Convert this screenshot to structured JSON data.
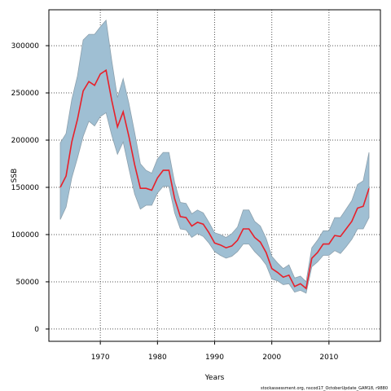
{
  "chart_data": {
    "type": "line",
    "xlabel": "Years",
    "ylabel": "SSB",
    "footer": "stockassessment.org, nscod17_OctoberUpdate_GAM18, r9880",
    "xlim": [
      1961,
      2019
    ],
    "ylim": [
      -13000,
      338000
    ],
    "x_ticks": [
      1970,
      1980,
      1990,
      2000,
      2010
    ],
    "y_ticks": [
      0,
      50000,
      100000,
      150000,
      200000,
      250000,
      300000
    ],
    "grid": true,
    "x": [
      1963,
      1964,
      1965,
      1966,
      1967,
      1968,
      1969,
      1970,
      1971,
      1972,
      1973,
      1974,
      1975,
      1976,
      1977,
      1978,
      1979,
      1980,
      1981,
      1982,
      1983,
      1984,
      1985,
      1986,
      1987,
      1988,
      1989,
      1990,
      1991,
      1992,
      1993,
      1994,
      1995,
      1996,
      1997,
      1998,
      1999,
      2000,
      2001,
      2002,
      2003,
      2004,
      2005,
      2006,
      2007,
      2008,
      2009,
      2010,
      2011,
      2012,
      2013,
      2014,
      2015,
      2016,
      2017
    ],
    "series": [
      {
        "role": "estimate",
        "color": "#e8202a",
        "values": [
          150000,
          162000,
          198000,
          222000,
          252000,
          262000,
          258000,
          270000,
          274000,
          242000,
          214000,
          230000,
          204000,
          174000,
          149000,
          149000,
          147000,
          160000,
          168000,
          168000,
          138000,
          119000,
          118000,
          109000,
          113000,
          111000,
          102000,
          91000,
          89000,
          86000,
          88000,
          94000,
          106000,
          106000,
          97000,
          92000,
          81000,
          64000,
          60000,
          55000,
          57000,
          45000,
          48000,
          43000,
          75000,
          81000,
          90000,
          90000,
          99000,
          98000,
          106000,
          114000,
          128000,
          130000,
          149000
        ]
      },
      {
        "role": "upper-bound",
        "values": [
          197000,
          207000,
          243000,
          268000,
          306000,
          312000,
          312000,
          320000,
          327000,
          284000,
          245000,
          265000,
          239000,
          208000,
          175000,
          168000,
          165000,
          180000,
          187000,
          187000,
          155000,
          134000,
          133000,
          122000,
          126000,
          123000,
          113000,
          102000,
          100000,
          97000,
          101000,
          108000,
          126000,
          126000,
          114000,
          109000,
          96000,
          77000,
          70000,
          64000,
          68000,
          54000,
          56000,
          50000,
          86000,
          94000,
          104000,
          104000,
          118000,
          118000,
          127000,
          136000,
          153000,
          157000,
          187000
        ]
      },
      {
        "role": "lower-bound",
        "values": [
          116000,
          129000,
          160000,
          181000,
          204000,
          220000,
          215000,
          225000,
          229000,
          205000,
          185000,
          198000,
          170000,
          143000,
          127000,
          131000,
          131000,
          144000,
          151000,
          151000,
          123000,
          106000,
          105000,
          97000,
          101000,
          98000,
          91000,
          82000,
          78000,
          75000,
          77000,
          82000,
          90000,
          90000,
          82000,
          76000,
          68000,
          53000,
          51000,
          47000,
          48000,
          39000,
          41000,
          38000,
          66000,
          71000,
          78000,
          78000,
          83000,
          80000,
          87000,
          95000,
          106000,
          106000,
          118000
        ]
      }
    ],
    "band_color": "#9fbfd3"
  }
}
